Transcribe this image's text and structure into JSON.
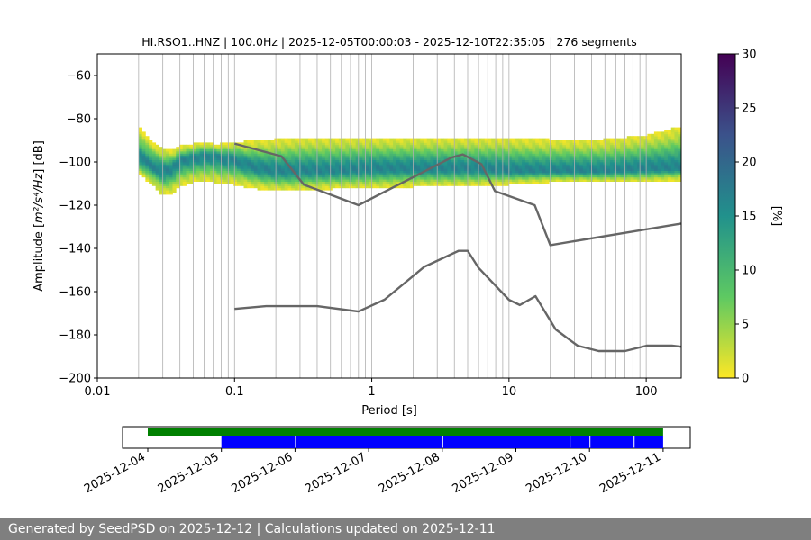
{
  "chart_data": [
    {
      "type": "heatmap",
      "title": "HI.RSO1..HNZ | 100.0Hz | 2025-12-05T00:00:03 - 2025-12-10T22:35:05 | 276 segments",
      "xlabel": "Period [s]",
      "ylabel_prefix": "Amplitude [",
      "ylabel_math": "m²/s⁴/Hz",
      "ylabel_suffix": "] [dB]",
      "xscale": "log",
      "xlim": [
        0.01,
        180
      ],
      "ylim": [
        -200,
        -50
      ],
      "grid": "vertical",
      "x_ticks": [
        {
          "value": 0.01,
          "label": "0.01"
        },
        {
          "value": 0.1,
          "label": "0.1"
        },
        {
          "value": 1,
          "label": "1"
        },
        {
          "value": 10,
          "label": "10"
        },
        {
          "value": 100,
          "label": "100"
        }
      ],
      "y_ticks": [
        {
          "value": -60,
          "label": "−60"
        },
        {
          "value": -80,
          "label": "−80"
        },
        {
          "value": -100,
          "label": "−100"
        },
        {
          "value": -120,
          "label": "−120"
        },
        {
          "value": -140,
          "label": "−140"
        },
        {
          "value": -160,
          "label": "−160"
        },
        {
          "value": -180,
          "label": "−180"
        },
        {
          "value": -200,
          "label": "−200"
        }
      ],
      "colorbar": {
        "label": "[%]",
        "range": [
          0,
          30
        ],
        "colormap": "viridis_r",
        "colors": [
          "#fde725",
          "#5ec962",
          "#21918c",
          "#3b528b",
          "#440154"
        ],
        "ticks": [
          {
            "value": 0,
            "label": "0"
          },
          {
            "value": 5,
            "label": "5"
          },
          {
            "value": 10,
            "label": "10"
          },
          {
            "value": 15,
            "label": "15"
          },
          {
            "value": 20,
            "label": "20"
          },
          {
            "value": 25,
            "label": "25"
          },
          {
            "value": 30,
            "label": "30"
          }
        ]
      },
      "psd_band": {
        "period": [
          0.02,
          0.025,
          0.03,
          0.035,
          0.04,
          0.05,
          0.06,
          0.07,
          0.08,
          0.1,
          0.12,
          0.15,
          0.2,
          0.3,
          0.5,
          1,
          2,
          5,
          10,
          20,
          50,
          100,
          180
        ],
        "upper": [
          -84,
          -91,
          -94,
          -95,
          -93,
          -92,
          -91,
          -92,
          -92,
          -91,
          -91,
          -90,
          -90,
          -89,
          -89,
          -89,
          -89,
          -89,
          -89,
          -90,
          -90,
          -88,
          -84
        ],
        "lower": [
          -105,
          -110,
          -115,
          -114,
          -111,
          -109,
          -109,
          -109,
          -110,
          -110,
          -111,
          -112,
          -113,
          -113,
          -112,
          -112,
          -111,
          -111,
          -110,
          -109,
          -109,
          -109,
          -108
        ],
        "mode": [
          -98,
          -102,
          -104,
          -103,
          -99,
          -98,
          -97,
          -97,
          -98,
          -99,
          -101,
          -103,
          -104,
          -104,
          -104,
          -103,
          -103,
          -103,
          -104,
          -104,
          -104,
          -103,
          -103
        ]
      },
      "noise_models": [
        {
          "name": "high",
          "color": "#666666",
          "period": [
            0.1,
            0.22,
            0.32,
            0.8,
            3.8,
            4.6,
            6.3,
            7.9,
            15.4,
            20,
            180
          ],
          "db": [
            -91.5,
            -97.4,
            -110.5,
            -120,
            -98,
            -96.5,
            -101,
            -113.5,
            -120,
            -138.5,
            -128.5
          ]
        },
        {
          "name": "low",
          "color": "#666666",
          "period": [
            0.1,
            0.17,
            0.4,
            0.8,
            1.24,
            2.4,
            4.3,
            5,
            6,
            10,
            12,
            15.6,
            21.9,
            31.6,
            45,
            70,
            101,
            154,
            180
          ],
          "db": [
            -168,
            -166.7,
            -166.7,
            -169.2,
            -163.7,
            -148.6,
            -141.1,
            -141.1,
            -149,
            -163.8,
            -166.2,
            -162.1,
            -177.5,
            -185,
            -187.5,
            -187.5,
            -185,
            -185,
            -185.5
          ]
        }
      ]
    },
    {
      "type": "timeline",
      "date_ticks": [
        "2025-12-04",
        "2025-12-05",
        "2025-12-06",
        "2025-12-07",
        "2025-12-08",
        "2025-12-09",
        "2025-12-10",
        "2025-12-11"
      ],
      "bars": [
        {
          "name": "available",
          "color": "#008000",
          "start_day": 0,
          "end_day": 7
        },
        {
          "name": "used",
          "color": "#0000ff",
          "start_day": 1,
          "end_day": 7
        }
      ],
      "gaps": [
        2,
        4,
        5.73,
        6,
        6.6
      ]
    }
  ],
  "footer": {
    "text": "Generated by SeedPSD on 2025-12-12 | Calculations updated on 2025-12-11"
  }
}
